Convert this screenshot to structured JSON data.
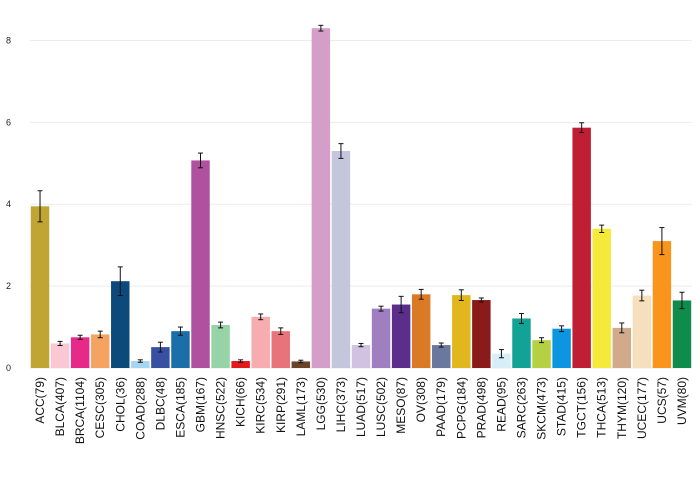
{
  "chart_data": {
    "type": "bar",
    "title": "",
    "xlabel": "",
    "ylabel": "",
    "ylim": [
      0,
      8.5
    ],
    "yticks": [
      0,
      2,
      4,
      6,
      8
    ],
    "grid": true,
    "legend": "none",
    "error_bars": true,
    "categories": [
      "ACC(79)",
      "BLCA(407)",
      "BRCA(1104)",
      "CESC(305)",
      "CHOL(36)",
      "COAD(288)",
      "DLBC(48)",
      "ESCA(185)",
      "GBM(167)",
      "HNSC(522)",
      "KICH(66)",
      "KIRC(534)",
      "KIRP(291)",
      "LAML(173)",
      "LGG(530)",
      "LIHC(373)",
      "LUAD(517)",
      "LUSC(502)",
      "MESO(87)",
      "OV(308)",
      "PAAD(179)",
      "PCPG(184)",
      "PRAD(498)",
      "READ(95)",
      "SARC(263)",
      "SKCM(473)",
      "STAD(415)",
      "TGCT(156)",
      "THCA(513)",
      "THYM(120)",
      "UCEC(177)",
      "UCS(57)",
      "UVM(80)"
    ],
    "values": [
      3.95,
      0.6,
      0.75,
      0.82,
      2.12,
      0.17,
      0.51,
      0.9,
      5.07,
      1.05,
      0.17,
      1.25,
      0.9,
      0.16,
      8.3,
      5.3,
      0.56,
      1.45,
      1.55,
      1.8,
      0.56,
      1.78,
      1.66,
      0.35,
      1.21,
      0.68,
      0.96,
      5.87,
      3.4,
      0.98,
      1.77,
      3.1,
      1.65
    ],
    "errors": [
      0.38,
      0.05,
      0.05,
      0.08,
      0.35,
      0.03,
      0.12,
      0.1,
      0.18,
      0.07,
      0.03,
      0.07,
      0.08,
      0.03,
      0.07,
      0.18,
      0.04,
      0.06,
      0.2,
      0.12,
      0.05,
      0.13,
      0.05,
      0.1,
      0.12,
      0.06,
      0.07,
      0.12,
      0.09,
      0.12,
      0.13,
      0.33,
      0.2
    ],
    "colors": [
      "#c0a535",
      "#f9c8d4",
      "#e7298a",
      "#f4a460",
      "#0b4a7a",
      "#a5d5f2",
      "#3950a2",
      "#1a6fa8",
      "#b051a0",
      "#96d4a8",
      "#e31a1c",
      "#f7acb0",
      "#e9737a",
      "#6b4427",
      "#d49ec9",
      "#c4c7db",
      "#d0c2e0",
      "#9f7fbf",
      "#5a2e8a",
      "#da7a24",
      "#6a78a0",
      "#e2b61d",
      "#8b1a1a",
      "#d7eef9",
      "#13a396",
      "#b5d042",
      "#0d96e0",
      "#c01f33",
      "#f5ea3a",
      "#d1aa8c",
      "#f6dfbc",
      "#f9951c",
      "#0f8c4b"
    ]
  }
}
